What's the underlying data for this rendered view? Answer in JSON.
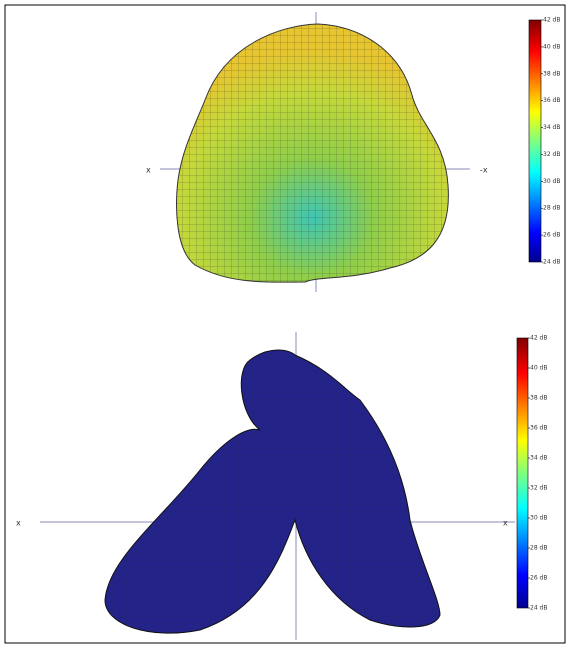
{
  "chart_data": [
    {
      "type": "surface",
      "left_label": "x",
      "right_label": "-x",
      "clim": [
        24,
        42
      ],
      "cticks": [
        {
          "value": 42,
          "label": "42 dB"
        },
        {
          "value": 40,
          "label": "40 dB"
        },
        {
          "value": 38,
          "label": "38 dB"
        },
        {
          "value": 36,
          "label": "36 dB"
        },
        {
          "value": 34,
          "label": "34 dB"
        },
        {
          "value": 32,
          "label": "32 dB"
        },
        {
          "value": 30,
          "label": "30 dB"
        },
        {
          "value": 28,
          "label": "28 dB"
        },
        {
          "value": 26,
          "label": "26 dB"
        },
        {
          "value": 24,
          "label": "24 dB"
        }
      ]
    },
    {
      "type": "surface",
      "left_label": "x",
      "right_label": "x",
      "clim": [
        24,
        42
      ],
      "cticks": [
        {
          "value": 42,
          "label": "42 dB"
        },
        {
          "value": 40,
          "label": "40 dB"
        },
        {
          "value": 38,
          "label": "38 dB"
        },
        {
          "value": 36,
          "label": "36 dB"
        },
        {
          "value": 34,
          "label": "34 dB"
        },
        {
          "value": 32,
          "label": "32 dB"
        },
        {
          "value": 30,
          "label": "30 dB"
        },
        {
          "value": 28,
          "label": "28 dB"
        },
        {
          "value": 26,
          "label": "26 dB"
        },
        {
          "value": 24,
          "label": "24 dB"
        }
      ]
    }
  ]
}
